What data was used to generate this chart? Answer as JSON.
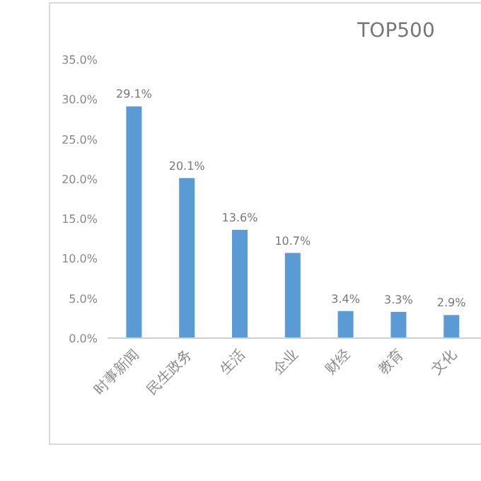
{
  "chart_data": {
    "type": "bar",
    "title": "TOP500",
    "categories": [
      "时事新闻",
      "民生政务",
      "生活",
      "企业",
      "财经",
      "教育",
      "文化"
    ],
    "values": [
      29.1,
      20.1,
      13.6,
      10.7,
      3.4,
      3.3,
      2.9
    ],
    "value_labels": [
      "29.1%",
      "20.1%",
      "13.6%",
      "10.7%",
      "3.4%",
      "3.3%",
      "2.9%"
    ],
    "color": "#5b9bd5",
    "ylim": [
      0,
      35
    ],
    "yticks": [
      {
        "value": 0,
        "label": "0.0%"
      },
      {
        "value": 5,
        "label": "5.0%"
      },
      {
        "value": 10,
        "label": "10.0%"
      },
      {
        "value": 15,
        "label": "15.0%"
      },
      {
        "value": 20,
        "label": "20.0%"
      },
      {
        "value": 25,
        "label": "25.0%"
      },
      {
        "value": 30,
        "label": "30.0%"
      },
      {
        "value": 35,
        "label": "35.0%"
      }
    ],
    "grid": false
  }
}
